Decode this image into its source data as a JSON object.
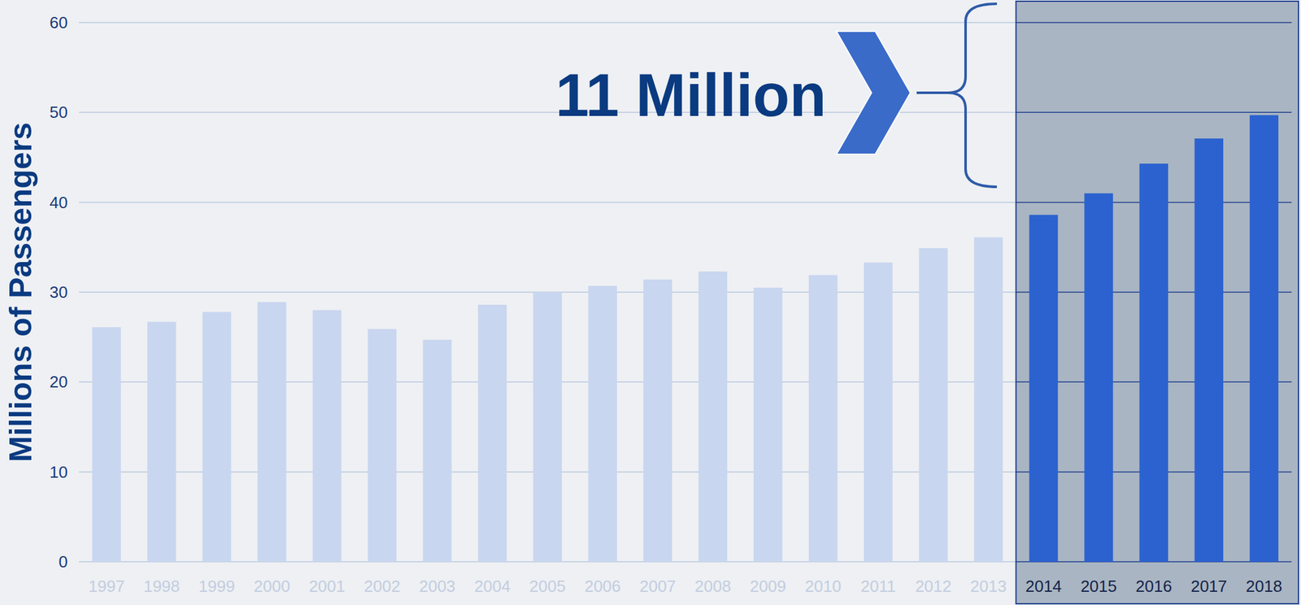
{
  "chart_data": {
    "type": "bar",
    "y_label": "Millions of Passengers",
    "annotation": "11 Million",
    "categories": [
      "1997",
      "1998",
      "1999",
      "2000",
      "2001",
      "2002",
      "2003",
      "2004",
      "2005",
      "2006",
      "2007",
      "2008",
      "2009",
      "2010",
      "2011",
      "2012",
      "2013",
      "2014",
      "2015",
      "2016",
      "2017",
      "2018"
    ],
    "values": [
      26.1,
      26.7,
      27.8,
      28.9,
      28.0,
      25.9,
      24.7,
      28.6,
      30.0,
      30.7,
      31.4,
      32.3,
      30.5,
      31.9,
      33.3,
      34.9,
      36.1,
      38.6,
      41.0,
      44.3,
      47.1,
      49.7
    ],
    "colors": [
      "#c9d6ef",
      "#c9d6ef",
      "#c9d6ef",
      "#c9d6ef",
      "#c9d6ef",
      "#c9d6ef",
      "#c9d6ef",
      "#c9d6ef",
      "#c9d6ef",
      "#c9d6ef",
      "#c9d6ef",
      "#c9d6ef",
      "#c9d6ef",
      "#c9d6ef",
      "#c9d6ef",
      "#c9d6ef",
      "#c9d6ef",
      "#2c62cf",
      "#2c62cf",
      "#2c62cf",
      "#2c62cf",
      "#2c62cf"
    ],
    "ylim": [
      0,
      60
    ],
    "yticks": [
      0,
      10,
      20,
      30,
      40,
      50,
      60
    ],
    "grid": true
  }
}
